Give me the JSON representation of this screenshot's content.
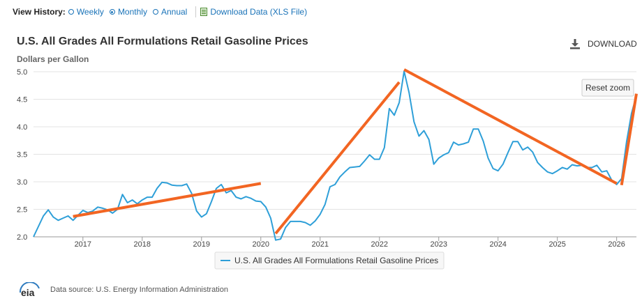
{
  "view_history": {
    "label": "View History:",
    "options": [
      {
        "label": "Weekly",
        "selected": false
      },
      {
        "label": "Monthly",
        "selected": true
      },
      {
        "label": "Annual",
        "selected": false
      }
    ],
    "download_data": "Download Data (XLS File)"
  },
  "header": {
    "download_label": "DOWNLOAD",
    "reset_zoom": "Reset zoom"
  },
  "footer": {
    "logo_text": "eia",
    "source": "Data source: U.S. Energy Information Administration"
  },
  "colors": {
    "series": "#2e9fd8",
    "annotation": "#f26522",
    "link": "#1a73b8",
    "grid": "#e3e3e3"
  },
  "chart_data": {
    "type": "line",
    "title": "U.S. All Grades All Formulations Retail Gasoline Prices",
    "ylabel": "Dollars per Gallon",
    "ylim": [
      2.0,
      5.0
    ],
    "yticks": [
      2.0,
      2.5,
      3.0,
      3.5,
      4.0,
      4.5,
      5.0
    ],
    "ytick_labels": [
      "2.0",
      "2.5",
      "3.0",
      "3.5",
      "4.0",
      "4.5",
      "5.0"
    ],
    "xlim": [
      "2016-03",
      "2026-05"
    ],
    "xticks": [
      "2017",
      "2018",
      "2019",
      "2020",
      "2021",
      "2022",
      "2023",
      "2024",
      "2025",
      "2026"
    ],
    "grid": "horizontal",
    "legend_position": "bottom-center",
    "series": [
      {
        "name": "U.S. All Grades All Formulations Retail Gasoline Prices",
        "points": [
          [
            "2016-03",
            2.0
          ],
          [
            "2016-04",
            2.19
          ],
          [
            "2016-05",
            2.38
          ],
          [
            "2016-06",
            2.49
          ],
          [
            "2016-07",
            2.36
          ],
          [
            "2016-08",
            2.3
          ],
          [
            "2016-09",
            2.34
          ],
          [
            "2016-10",
            2.38
          ],
          [
            "2016-11",
            2.3
          ],
          [
            "2016-12",
            2.39
          ],
          [
            "2017-01",
            2.48
          ],
          [
            "2017-02",
            2.44
          ],
          [
            "2017-03",
            2.47
          ],
          [
            "2017-04",
            2.54
          ],
          [
            "2017-05",
            2.52
          ],
          [
            "2017-06",
            2.49
          ],
          [
            "2017-07",
            2.43
          ],
          [
            "2017-08",
            2.5
          ],
          [
            "2017-09",
            2.77
          ],
          [
            "2017-10",
            2.62
          ],
          [
            "2017-11",
            2.67
          ],
          [
            "2017-12",
            2.6
          ],
          [
            "2018-01",
            2.67
          ],
          [
            "2018-02",
            2.72
          ],
          [
            "2018-03",
            2.72
          ],
          [
            "2018-04",
            2.88
          ],
          [
            "2018-05",
            2.99
          ],
          [
            "2018-06",
            2.98
          ],
          [
            "2018-07",
            2.94
          ],
          [
            "2018-08",
            2.93
          ],
          [
            "2018-09",
            2.93
          ],
          [
            "2018-10",
            2.96
          ],
          [
            "2018-11",
            2.79
          ],
          [
            "2018-12",
            2.47
          ],
          [
            "2019-01",
            2.36
          ],
          [
            "2019-02",
            2.42
          ],
          [
            "2019-03",
            2.64
          ],
          [
            "2019-04",
            2.88
          ],
          [
            "2019-05",
            2.95
          ],
          [
            "2019-06",
            2.8
          ],
          [
            "2019-07",
            2.84
          ],
          [
            "2019-08",
            2.72
          ],
          [
            "2019-09",
            2.69
          ],
          [
            "2019-10",
            2.73
          ],
          [
            "2019-11",
            2.7
          ],
          [
            "2019-12",
            2.65
          ],
          [
            "2020-01",
            2.64
          ],
          [
            "2020-02",
            2.54
          ],
          [
            "2020-03",
            2.34
          ],
          [
            "2020-04",
            1.94
          ],
          [
            "2020-05",
            1.96
          ],
          [
            "2020-06",
            2.17
          ],
          [
            "2020-07",
            2.28
          ],
          [
            "2020-08",
            2.28
          ],
          [
            "2020-09",
            2.28
          ],
          [
            "2020-10",
            2.26
          ],
          [
            "2020-11",
            2.21
          ],
          [
            "2020-12",
            2.29
          ],
          [
            "2021-01",
            2.41
          ],
          [
            "2021-02",
            2.59
          ],
          [
            "2021-03",
            2.91
          ],
          [
            "2021-04",
            2.95
          ],
          [
            "2021-05",
            3.09
          ],
          [
            "2021-06",
            3.18
          ],
          [
            "2021-07",
            3.26
          ],
          [
            "2021-08",
            3.27
          ],
          [
            "2021-09",
            3.28
          ],
          [
            "2021-10",
            3.38
          ],
          [
            "2021-11",
            3.49
          ],
          [
            "2021-12",
            3.41
          ],
          [
            "2022-01",
            3.41
          ],
          [
            "2022-02",
            3.62
          ],
          [
            "2022-03",
            4.33
          ],
          [
            "2022-04",
            4.21
          ],
          [
            "2022-05",
            4.44
          ],
          [
            "2022-06",
            5.01
          ],
          [
            "2022-07",
            4.62
          ],
          [
            "2022-08",
            4.09
          ],
          [
            "2022-09",
            3.83
          ],
          [
            "2022-10",
            3.93
          ],
          [
            "2022-11",
            3.77
          ],
          [
            "2022-12",
            3.32
          ],
          [
            "2023-01",
            3.43
          ],
          [
            "2023-02",
            3.49
          ],
          [
            "2023-03",
            3.53
          ],
          [
            "2023-04",
            3.72
          ],
          [
            "2023-05",
            3.67
          ],
          [
            "2023-06",
            3.69
          ],
          [
            "2023-07",
            3.72
          ],
          [
            "2023-08",
            3.96
          ],
          [
            "2023-09",
            3.96
          ],
          [
            "2023-10",
            3.74
          ],
          [
            "2023-11",
            3.43
          ],
          [
            "2023-12",
            3.24
          ],
          [
            "2024-01",
            3.2
          ],
          [
            "2024-02",
            3.32
          ],
          [
            "2024-03",
            3.53
          ],
          [
            "2024-04",
            3.73
          ],
          [
            "2024-05",
            3.73
          ],
          [
            "2024-06",
            3.58
          ],
          [
            "2024-07",
            3.63
          ],
          [
            "2024-08",
            3.54
          ],
          [
            "2024-09",
            3.35
          ],
          [
            "2024-10",
            3.26
          ],
          [
            "2024-11",
            3.18
          ],
          [
            "2024-12",
            3.15
          ],
          [
            "2025-01",
            3.2
          ],
          [
            "2025-02",
            3.26
          ],
          [
            "2025-03",
            3.23
          ],
          [
            "2025-04",
            3.31
          ],
          [
            "2025-05",
            3.29
          ],
          [
            "2025-06",
            3.3
          ],
          [
            "2025-07",
            3.26
          ],
          [
            "2025-08",
            3.26
          ],
          [
            "2025-09",
            3.3
          ],
          [
            "2025-10",
            3.18
          ],
          [
            "2025-11",
            3.2
          ],
          [
            "2025-12",
            3.03
          ],
          [
            "2026-01",
            2.95
          ],
          [
            "2026-02",
            3.06
          ],
          [
            "2026-03",
            3.72
          ],
          [
            "2026-04",
            4.24
          ],
          [
            "2026-05",
            4.57
          ]
        ]
      }
    ],
    "annotations": [
      {
        "type": "trendline",
        "from": [
          "2016-11",
          2.37
        ],
        "to": [
          "2020-01",
          2.97
        ]
      },
      {
        "type": "trendline",
        "from": [
          "2020-04",
          2.06
        ],
        "to": [
          "2022-05",
          4.81
        ]
      },
      {
        "type": "trendline",
        "from": [
          "2022-06",
          5.04
        ],
        "to": [
          "2026-01",
          2.97
        ]
      },
      {
        "type": "trendline",
        "from": [
          "2026-02",
          2.94
        ],
        "to": [
          "2026-05",
          4.6
        ]
      }
    ]
  }
}
